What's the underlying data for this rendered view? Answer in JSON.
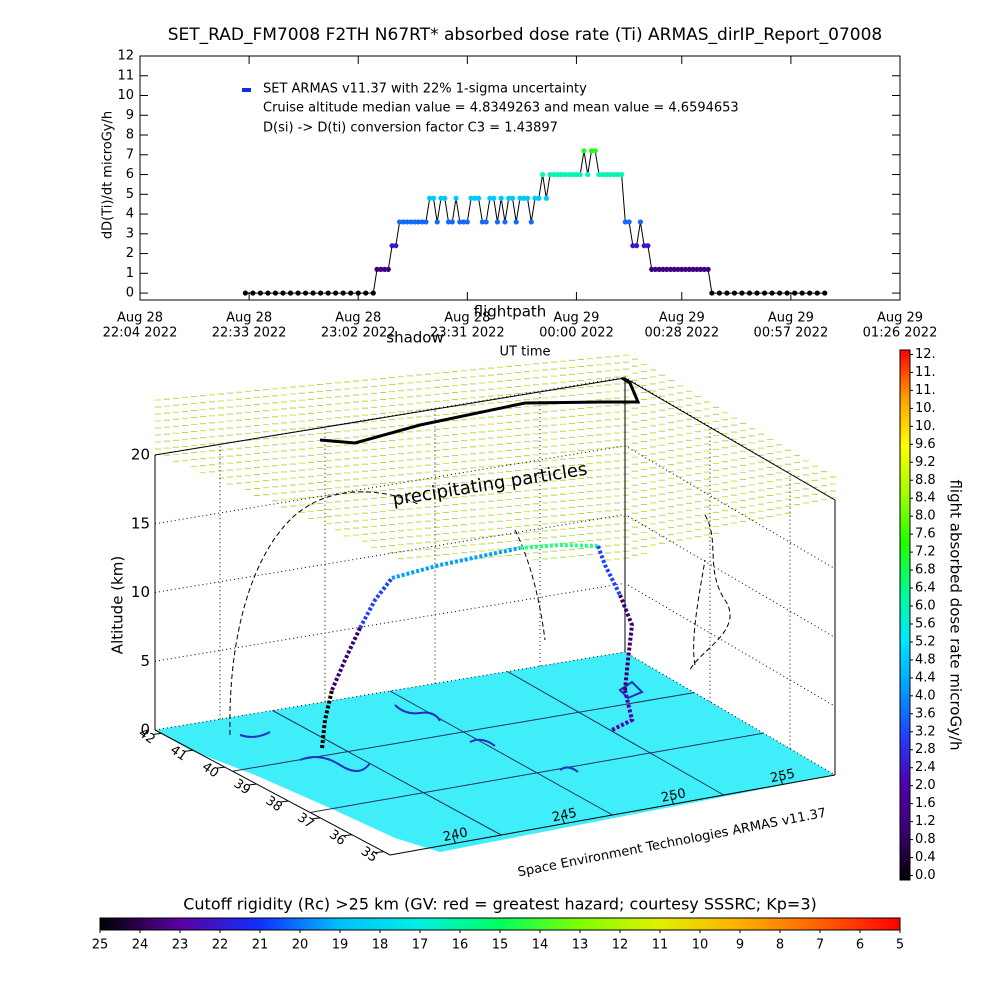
{
  "chart_data": [
    {
      "type": "line",
      "title": "SET_RAD_FM7008  F2TH N67RT* absorbed dose rate (Ti) ARMAS_dirIP_Report_07008",
      "xlabel": "UT time",
      "ylabel": "dD(Ti)/dt microGy/h",
      "annotations": [
        "Cruise altitude median value = 4.8349263 and mean value = 4.6594653",
        "D(si) -> D(ti) conversion factor C3 = 1.43897"
      ],
      "xlim": [
        "2022-08-28T22:04",
        "2022-08-29T01:26"
      ],
      "xticks": [
        {
          "value": "2022-08-28T22:04",
          "label": [
            "Aug 28",
            "22:04 2022"
          ]
        },
        {
          "value": "2022-08-28T22:33",
          "label": [
            "Aug 28",
            "22:33 2022"
          ]
        },
        {
          "value": "2022-08-28T23:02",
          "label": [
            "Aug 28",
            "23:02 2022"
          ]
        },
        {
          "value": "2022-08-28T23:31",
          "label": [
            "Aug 28",
            "23:31 2022"
          ]
        },
        {
          "value": "2022-08-29T00:00",
          "label": [
            "Aug 29",
            "00:00 2022"
          ]
        },
        {
          "value": "2022-08-29T00:28",
          "label": [
            "Aug 29",
            "00:28 2022"
          ]
        },
        {
          "value": "2022-08-29T00:57",
          "label": [
            "Aug 29",
            "00:57 2022"
          ]
        },
        {
          "value": "2022-08-29T01:26",
          "label": [
            "Aug 29",
            "01:26 2022"
          ]
        }
      ],
      "ylim": [
        -0.35,
        12
      ],
      "yticks": [
        0,
        1,
        2,
        3,
        4,
        5,
        6,
        7,
        8,
        9,
        10,
        11,
        12
      ],
      "x": [
        "2022-08-28T22:32",
        "2022-08-28T22:34",
        "2022-08-28T22:36",
        "2022-08-28T22:38",
        "2022-08-28T22:40",
        "2022-08-28T22:42",
        "2022-08-28T22:44",
        "2022-08-28T22:46",
        "2022-08-28T22:48",
        "2022-08-28T22:50",
        "2022-08-28T22:52",
        "2022-08-28T22:54",
        "2022-08-28T22:56",
        "2022-08-28T22:58",
        "2022-08-28T23:00",
        "2022-08-28T23:02",
        "2022-08-28T23:04",
        "2022-08-28T23:06",
        "2022-08-28T23:07",
        "2022-08-28T23:08",
        "2022-08-28T23:09",
        "2022-08-28T23:10",
        "2022-08-28T23:11",
        "2022-08-28T23:12",
        "2022-08-28T23:13",
        "2022-08-28T23:14",
        "2022-08-28T23:15",
        "2022-08-28T23:16",
        "2022-08-28T23:17",
        "2022-08-28T23:18",
        "2022-08-28T23:19",
        "2022-08-28T23:20",
        "2022-08-28T23:21",
        "2022-08-28T23:22",
        "2022-08-28T23:23",
        "2022-08-28T23:24",
        "2022-08-28T23:25",
        "2022-08-28T23:26",
        "2022-08-28T23:27",
        "2022-08-28T23:28",
        "2022-08-28T23:29",
        "2022-08-28T23:30",
        "2022-08-28T23:31",
        "2022-08-28T23:32",
        "2022-08-28T23:33",
        "2022-08-28T23:34",
        "2022-08-28T23:35",
        "2022-08-28T23:36",
        "2022-08-28T23:37",
        "2022-08-28T23:38",
        "2022-08-28T23:39",
        "2022-08-28T23:40",
        "2022-08-28T23:41",
        "2022-08-28T23:42",
        "2022-08-28T23:43",
        "2022-08-28T23:44",
        "2022-08-28T23:45",
        "2022-08-28T23:46",
        "2022-08-28T23:47",
        "2022-08-28T23:48",
        "2022-08-28T23:49",
        "2022-08-28T23:50",
        "2022-08-28T23:51",
        "2022-08-28T23:52",
        "2022-08-28T23:53",
        "2022-08-28T23:54",
        "2022-08-28T23:55",
        "2022-08-28T23:56",
        "2022-08-28T23:57",
        "2022-08-28T23:58",
        "2022-08-28T23:59",
        "2022-08-29T00:00",
        "2022-08-29T00:01",
        "2022-08-29T00:02",
        "2022-08-29T00:03",
        "2022-08-29T00:04",
        "2022-08-29T00:05",
        "2022-08-29T00:06",
        "2022-08-29T00:07",
        "2022-08-29T00:08",
        "2022-08-29T00:09",
        "2022-08-29T00:10",
        "2022-08-29T00:11",
        "2022-08-29T00:12",
        "2022-08-29T00:13",
        "2022-08-29T00:14",
        "2022-08-29T00:15",
        "2022-08-29T00:16",
        "2022-08-29T00:17",
        "2022-08-29T00:18",
        "2022-08-29T00:19",
        "2022-08-29T00:20",
        "2022-08-29T00:21",
        "2022-08-29T00:22",
        "2022-08-29T00:23",
        "2022-08-29T00:24",
        "2022-08-29T00:25",
        "2022-08-29T00:26",
        "2022-08-29T00:27",
        "2022-08-29T00:28",
        "2022-08-29T00:29",
        "2022-08-29T00:30",
        "2022-08-29T00:31",
        "2022-08-29T00:32",
        "2022-08-29T00:33",
        "2022-08-29T00:34",
        "2022-08-29T00:35",
        "2022-08-29T00:36",
        "2022-08-29T00:38",
        "2022-08-29T00:40",
        "2022-08-29T00:42",
        "2022-08-29T00:44",
        "2022-08-29T00:46",
        "2022-08-29T00:48",
        "2022-08-29T00:50",
        "2022-08-29T00:52",
        "2022-08-29T00:54",
        "2022-08-29T00:56",
        "2022-08-29T00:58",
        "2022-08-29T01:00",
        "2022-08-29T01:02",
        "2022-08-29T01:04",
        "2022-08-29T01:06"
      ],
      "series": [
        {
          "name": "SET ARMAS v11.37 with 22% 1-sigma uncertainty",
          "color": "#1030e0",
          "values": [
            0,
            0,
            0,
            0,
            0,
            0,
            0,
            0,
            0,
            0,
            0,
            0,
            0,
            0,
            0,
            0,
            0,
            0,
            1.2,
            1.2,
            1.2,
            1.2,
            2.4,
            2.4,
            3.6,
            3.6,
            3.6,
            3.6,
            3.6,
            3.6,
            3.6,
            3.6,
            4.8,
            4.8,
            3.6,
            4.8,
            4.8,
            3.6,
            3.6,
            4.8,
            3.6,
            3.6,
            3.6,
            4.8,
            4.8,
            4.8,
            3.6,
            3.6,
            4.8,
            4.8,
            3.6,
            4.8,
            3.6,
            4.8,
            4.8,
            3.6,
            4.8,
            4.8,
            4.8,
            3.6,
            4.8,
            4.8,
            6.0,
            4.8,
            6.0,
            6.0,
            6.0,
            6.0,
            6.0,
            6.0,
            6.0,
            6.0,
            6.0,
            7.2,
            6.0,
            7.2,
            7.2,
            6.0,
            6.0,
            6.0,
            6.0,
            6.0,
            6.0,
            6.0,
            3.6,
            3.6,
            2.4,
            2.4,
            3.6,
            2.4,
            2.4,
            1.2,
            1.2,
            1.2,
            1.2,
            1.2,
            1.2,
            1.2,
            1.2,
            1.2,
            1.2,
            1.2,
            1.2,
            1.2,
            1.2,
            1.2,
            1.2,
            0,
            0,
            0,
            0,
            0,
            0,
            0,
            0,
            0,
            0,
            0,
            0,
            0,
            0,
            0,
            0
          ]
        }
      ]
    },
    {
      "type": "surface3d",
      "zlabel": "Altitude (km)",
      "zlim": [
        0,
        20
      ],
      "zticks": [
        0,
        5,
        10,
        15,
        20
      ],
      "latlim": [
        42.2,
        34.8
      ],
      "lat_ticks": [
        42,
        41,
        40,
        39,
        38,
        37,
        36,
        35
      ],
      "lonlim": [
        237,
        257.4
      ],
      "lon_ticks": [
        240,
        245,
        250,
        255
      ],
      "annotation": "precipitating particles",
      "credit": "Space Environment Technologies ARMAS v11.37",
      "shadow_label": "shadow",
      "flightpath_label": "flightpath"
    },
    {
      "type": "colorbar",
      "orientation": "vertical",
      "label": "flight absorbed dose rate microGy/h",
      "ylim": [
        -0.1,
        11.7
      ],
      "yticks": [
        {
          "value": 0.0,
          "label": "0.0"
        },
        0.4,
        0.8,
        1.2,
        1.6,
        {
          "value": 2.0,
          "label": "2.0"
        },
        2.4,
        2.8,
        3.2,
        3.6,
        {
          "value": 4.0,
          "label": "4.0"
        },
        4.4,
        4.8,
        5.2,
        5.6,
        {
          "value": 6.0,
          "label": "6.0"
        },
        6.4,
        6.8,
        7.2,
        7.6,
        {
          "value": 8.0,
          "label": "8.0"
        },
        8.4,
        8.8,
        9.2,
        9.6,
        {
          "value": 10.0,
          "label": "10."
        },
        {
          "value": 10.4,
          "label": "10."
        },
        {
          "value": 10.8,
          "label": "11."
        },
        {
          "value": 11.2,
          "label": "11."
        },
        {
          "value": 11.6,
          "label": "12."
        }
      ],
      "colors": [
        "#000000",
        "#3c0070",
        "#5000b0",
        "#2040ff",
        "#00a0ff",
        "#00e8ff",
        "#00ff90",
        "#20ff00",
        "#a0ff00",
        "#ffff00",
        "#ffa000",
        "#ff0000"
      ]
    },
    {
      "type": "colorbar",
      "orientation": "horizontal",
      "title": "Cutoff rigidity (Rc) >25 km (GV: red = greatest hazard; courtesy SSSRC; Kp=3)",
      "xlim": [
        25,
        5
      ],
      "xticks": [
        25,
        24,
        23,
        22,
        21,
        20,
        19,
        18,
        17,
        16,
        15,
        14,
        13,
        12,
        11,
        10,
        9,
        8,
        7,
        6,
        5
      ],
      "colors": [
        "#000000",
        "#5a00a0",
        "#1030ff",
        "#00c0ff",
        "#00f0e0",
        "#00ff60",
        "#80ff00",
        "#e0f000",
        "#ffb000",
        "#ff6000",
        "#ff0000"
      ]
    }
  ]
}
